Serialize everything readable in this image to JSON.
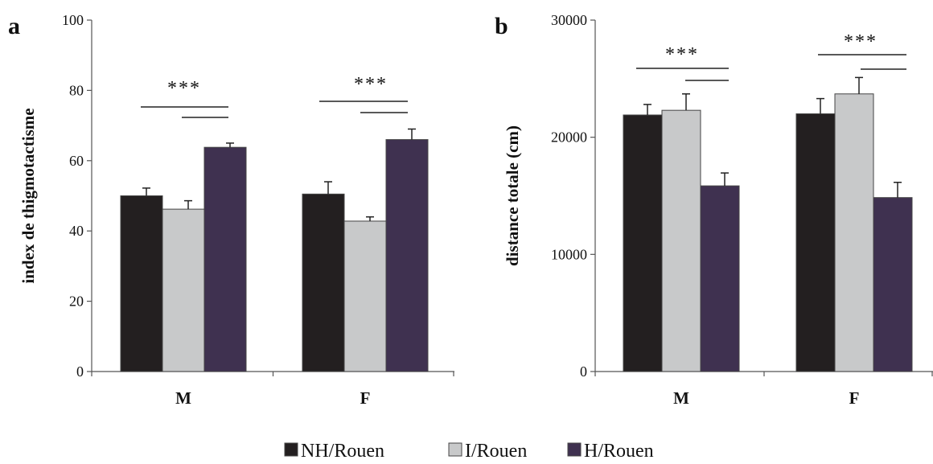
{
  "chart_data": [
    {
      "type": "bar",
      "panel_label": "a",
      "ylabel": "index de thigmotactisme",
      "xlabel": "",
      "categories": [
        "M",
        "F"
      ],
      "ylim": [
        0,
        100
      ],
      "yticks": [
        0,
        20,
        40,
        60,
        80,
        100
      ],
      "series": [
        {
          "name": "NH/Rouen",
          "color": "#231f20",
          "values": [
            50.0,
            50.5
          ],
          "errors": [
            2.2,
            3.5
          ]
        },
        {
          "name": "I/Rouen",
          "color": "#c8c9ca",
          "values": [
            46.2,
            42.8
          ],
          "errors": [
            2.4,
            1.2
          ]
        },
        {
          "name": "H/Rouen",
          "color": "#3f3150",
          "values": [
            63.8,
            66.0
          ],
          "errors": [
            1.2,
            3.0
          ]
        }
      ],
      "annotations": [
        {
          "category": "M",
          "label": "***"
        },
        {
          "category": "F",
          "label": "***"
        }
      ],
      "grid": false
    },
    {
      "type": "bar",
      "panel_label": "b",
      "ylabel": "distance totale (cm)",
      "xlabel": "",
      "categories": [
        "M",
        "F"
      ],
      "ylim": [
        0,
        30000
      ],
      "yticks": [
        0,
        10000,
        20000,
        30000
      ],
      "series": [
        {
          "name": "NH/Rouen",
          "color": "#231f20",
          "values": [
            21900,
            22000
          ],
          "errors": [
            900,
            1300
          ]
        },
        {
          "name": "I/Rouen",
          "color": "#c8c9ca",
          "values": [
            22300,
            23700
          ],
          "errors": [
            1400,
            1400
          ]
        },
        {
          "name": "H/Rouen",
          "color": "#3f3150",
          "values": [
            15850,
            14850
          ],
          "errors": [
            1100,
            1300
          ]
        }
      ],
      "annotations": [
        {
          "category": "M",
          "label": "***"
        },
        {
          "category": "F",
          "label": "***"
        }
      ],
      "grid": false
    }
  ],
  "legend": {
    "placement": "bottom-center",
    "items": [
      {
        "label": "NH/Rouen",
        "color": "#231f20"
      },
      {
        "label": "I/Rouen",
        "color": "#c8c9ca"
      },
      {
        "label": "H/Rouen",
        "color": "#3f3150"
      }
    ]
  }
}
